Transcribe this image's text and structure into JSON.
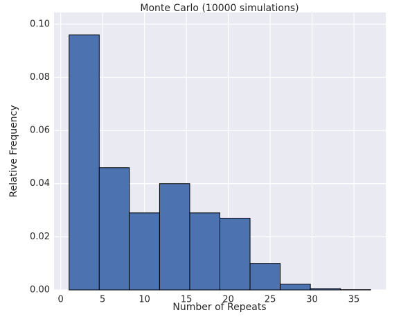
{
  "chart_data": {
    "type": "histogram",
    "title": "Monte Carlo (10000 simulations)",
    "xlabel": "Number of Repeats",
    "ylabel": "Relative Frequency",
    "bins": [
      1,
      4.6,
      8.2,
      11.8,
      15.4,
      19,
      22.6,
      26.2,
      29.8,
      33.4,
      37
    ],
    "values": [
      0.096,
      0.046,
      0.029,
      0.04,
      0.029,
      0.027,
      0.01,
      0.0022,
      0.0005,
      0.0001
    ],
    "color": "#4c72b0",
    "edgecolor": "#000000",
    "xlim": [
      -0.8,
      38.8
    ],
    "ylim": [
      0,
      0.1044
    ],
    "xticks": [
      0,
      5,
      10,
      15,
      20,
      25,
      30,
      35
    ],
    "yticks": [
      {
        "value": 0,
        "label": "0.00"
      },
      {
        "value": 0.02,
        "label": "0.02"
      },
      {
        "value": 0.04,
        "label": "0.04"
      },
      {
        "value": 0.06,
        "label": "0.06"
      },
      {
        "value": 0.08,
        "label": "0.08"
      },
      {
        "value": 0.1,
        "label": "0.10"
      }
    ],
    "grid": true
  }
}
